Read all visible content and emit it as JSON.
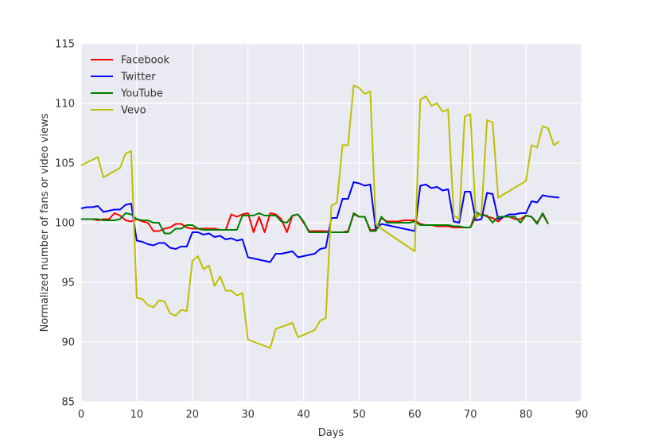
{
  "chart_data": {
    "type": "line",
    "title": "",
    "xlabel": "Days",
    "ylabel": "Normalized number of fans or video views",
    "xlim": [
      0,
      90
    ],
    "ylim": [
      85,
      115
    ],
    "xticks": [
      0,
      10,
      20,
      30,
      40,
      50,
      60,
      70,
      80,
      90
    ],
    "yticks": [
      85,
      90,
      95,
      100,
      105,
      110,
      115
    ],
    "grid": true,
    "legend": "top-left",
    "background": "#eaeaf2",
    "series": [
      {
        "name": "Facebook",
        "color": "#ff0000",
        "x": [
          0,
          1,
          2,
          3,
          4,
          5,
          6,
          7,
          8,
          9,
          10,
          11,
          12,
          13,
          14,
          15,
          16,
          17,
          18,
          19,
          20,
          21,
          22,
          23,
          24,
          25,
          26,
          27,
          28,
          29,
          30,
          31,
          32,
          33,
          34,
          35,
          36,
          37,
          38,
          39,
          40,
          41,
          42,
          43,
          44,
          45,
          46,
          47,
          48,
          49,
          50,
          51,
          52,
          53,
          54,
          55,
          56,
          57,
          58,
          59,
          60,
          61,
          62,
          63,
          64,
          65,
          66,
          67,
          68,
          69,
          70,
          71,
          72,
          73,
          74,
          75,
          76,
          77,
          78,
          79,
          80,
          81,
          82,
          83,
          84
        ],
        "y": [
          100.3,
          100.3,
          100.3,
          100.2,
          100.3,
          100.3,
          100.8,
          100.6,
          100.2,
          100.1,
          100.3,
          100.1,
          100.0,
          99.3,
          99.3,
          99.5,
          99.6,
          99.9,
          99.9,
          99.6,
          99.5,
          99.5,
          99.5,
          99.5,
          99.5,
          99.4,
          99.4,
          100.7,
          100.5,
          100.7,
          100.8,
          99.2,
          100.5,
          99.2,
          100.8,
          100.7,
          100.3,
          99.2,
          100.6,
          100.7,
          100.0,
          99.3,
          99.3,
          99.3,
          99.3,
          99.2,
          99.2,
          99.2,
          99.3,
          100.7,
          100.5,
          100.5,
          99.4,
          99.4,
          100.4,
          100.1,
          100.1,
          100.1,
          100.2,
          100.2,
          100.2,
          99.9,
          99.8,
          99.8,
          99.7,
          99.7,
          99.7,
          99.6,
          99.6,
          99.6,
          99.6,
          100.5,
          100.8,
          100.5,
          100.4,
          100.1,
          100.5,
          100.5,
          100.3,
          100.3,
          100.6,
          100.5,
          100.0,
          100.7,
          99.9
        ]
      },
      {
        "name": "Twitter",
        "color": "#0000ff",
        "x": [
          0,
          1,
          2,
          3,
          4,
          5,
          6,
          7,
          8,
          9,
          10,
          11,
          12,
          13,
          14,
          15,
          16,
          17,
          18,
          19,
          20,
          21,
          22,
          23,
          24,
          25,
          26,
          27,
          28,
          29,
          30,
          34,
          35,
          36,
          37,
          38,
          39,
          40,
          41,
          42,
          43,
          44,
          45,
          46,
          47,
          48,
          49,
          50,
          51,
          52,
          53,
          54,
          60,
          61,
          62,
          63,
          64,
          65,
          66,
          67,
          68,
          69,
          70,
          71,
          72,
          73,
          74,
          75,
          76,
          77,
          78,
          79,
          80,
          81,
          82,
          83,
          84,
          86
        ],
        "y": [
          101.2,
          101.3,
          101.3,
          101.4,
          100.9,
          101.0,
          101.1,
          101.1,
          101.5,
          101.6,
          98.5,
          98.4,
          98.2,
          98.1,
          98.3,
          98.3,
          97.9,
          97.8,
          98.0,
          98.0,
          99.2,
          99.2,
          99.0,
          99.1,
          98.8,
          98.9,
          98.6,
          98.7,
          98.5,
          98.6,
          97.1,
          96.7,
          97.4,
          97.4,
          97.5,
          97.6,
          97.1,
          97.2,
          97.3,
          97.4,
          97.8,
          97.9,
          100.4,
          100.4,
          102.0,
          102.0,
          103.4,
          103.3,
          103.1,
          103.2,
          99.4,
          99.9,
          99.3,
          103.1,
          103.2,
          102.9,
          103.0,
          102.7,
          102.8,
          100.1,
          100.0,
          102.6,
          102.6,
          100.2,
          100.3,
          102.5,
          102.4,
          100.3,
          100.5,
          100.7,
          100.7,
          100.8,
          100.8,
          101.8,
          101.7,
          102.3,
          102.2,
          102.1
        ]
      },
      {
        "name": "YouTube",
        "color": "#008000",
        "x": [
          0,
          1,
          2,
          3,
          4,
          5,
          6,
          7,
          8,
          9,
          10,
          11,
          12,
          13,
          14,
          15,
          16,
          17,
          18,
          19,
          20,
          21,
          22,
          23,
          24,
          25,
          26,
          27,
          28,
          29,
          30,
          31,
          32,
          33,
          34,
          35,
          36,
          37,
          38,
          39,
          40,
          41,
          42,
          43,
          44,
          45,
          46,
          47,
          48,
          49,
          50,
          51,
          52,
          53,
          54,
          55,
          56,
          57,
          58,
          59,
          60,
          61,
          62,
          63,
          64,
          65,
          66,
          67,
          68,
          69,
          70,
          71,
          72,
          73,
          74,
          75,
          76,
          77,
          78,
          79,
          80,
          81,
          82,
          83,
          84
        ],
        "y": [
          100.3,
          100.3,
          100.3,
          100.3,
          100.2,
          100.2,
          100.2,
          100.3,
          100.8,
          100.7,
          100.3,
          100.2,
          100.2,
          100.0,
          100.0,
          99.1,
          99.1,
          99.5,
          99.5,
          99.8,
          99.8,
          99.5,
          99.4,
          99.4,
          99.4,
          99.4,
          99.4,
          99.4,
          99.4,
          100.6,
          100.6,
          100.6,
          100.8,
          100.6,
          100.6,
          100.6,
          100.1,
          100.0,
          100.6,
          100.7,
          100.1,
          99.2,
          99.2,
          99.2,
          99.2,
          99.2,
          99.2,
          99.2,
          99.2,
          100.8,
          100.5,
          100.5,
          99.3,
          99.3,
          100.5,
          100.0,
          100.0,
          100.0,
          100.0,
          100.0,
          100.1,
          99.8,
          99.8,
          99.8,
          99.8,
          99.8,
          99.8,
          99.7,
          99.7,
          99.6,
          99.6,
          100.9,
          100.6,
          100.6,
          100.0,
          100.5,
          100.5,
          100.5,
          100.5,
          100.0,
          100.6,
          100.5,
          99.9,
          100.8,
          99.9
        ]
      },
      {
        "name": "Vevo",
        "color": "#bfbf00",
        "x": [
          0,
          3,
          4,
          7,
          8,
          9,
          10,
          11,
          12,
          13,
          14,
          15,
          16,
          17,
          18,
          19,
          20,
          21,
          22,
          23,
          24,
          25,
          26,
          27,
          28,
          29,
          30,
          34,
          35,
          38,
          39,
          42,
          43,
          44,
          45,
          46,
          47,
          48,
          49,
          50,
          51,
          52,
          53,
          54,
          60,
          61,
          62,
          63,
          64,
          65,
          66,
          67,
          68,
          69,
          70,
          71,
          72,
          73,
          74,
          75,
          80,
          81,
          82,
          83,
          84,
          85,
          86
        ],
        "y": [
          104.8,
          105.5,
          103.8,
          104.6,
          105.8,
          106.0,
          93.7,
          93.6,
          93.1,
          92.9,
          93.5,
          93.4,
          92.4,
          92.2,
          92.7,
          92.6,
          96.8,
          97.2,
          96.1,
          96.4,
          94.7,
          95.5,
          94.3,
          94.3,
          93.9,
          94.1,
          90.2,
          89.5,
          91.1,
          91.6,
          90.4,
          91.0,
          91.8,
          92.0,
          101.4,
          101.7,
          106.5,
          106.5,
          111.5,
          111.3,
          110.8,
          111.0,
          99.9,
          99.5,
          97.6,
          110.3,
          110.6,
          109.8,
          110.0,
          109.3,
          109.5,
          100.6,
          100.3,
          108.9,
          109.1,
          100.4,
          100.8,
          108.6,
          108.4,
          102.1,
          103.5,
          106.5,
          106.3,
          108.1,
          107.9,
          106.5,
          106.8
        ]
      }
    ]
  }
}
